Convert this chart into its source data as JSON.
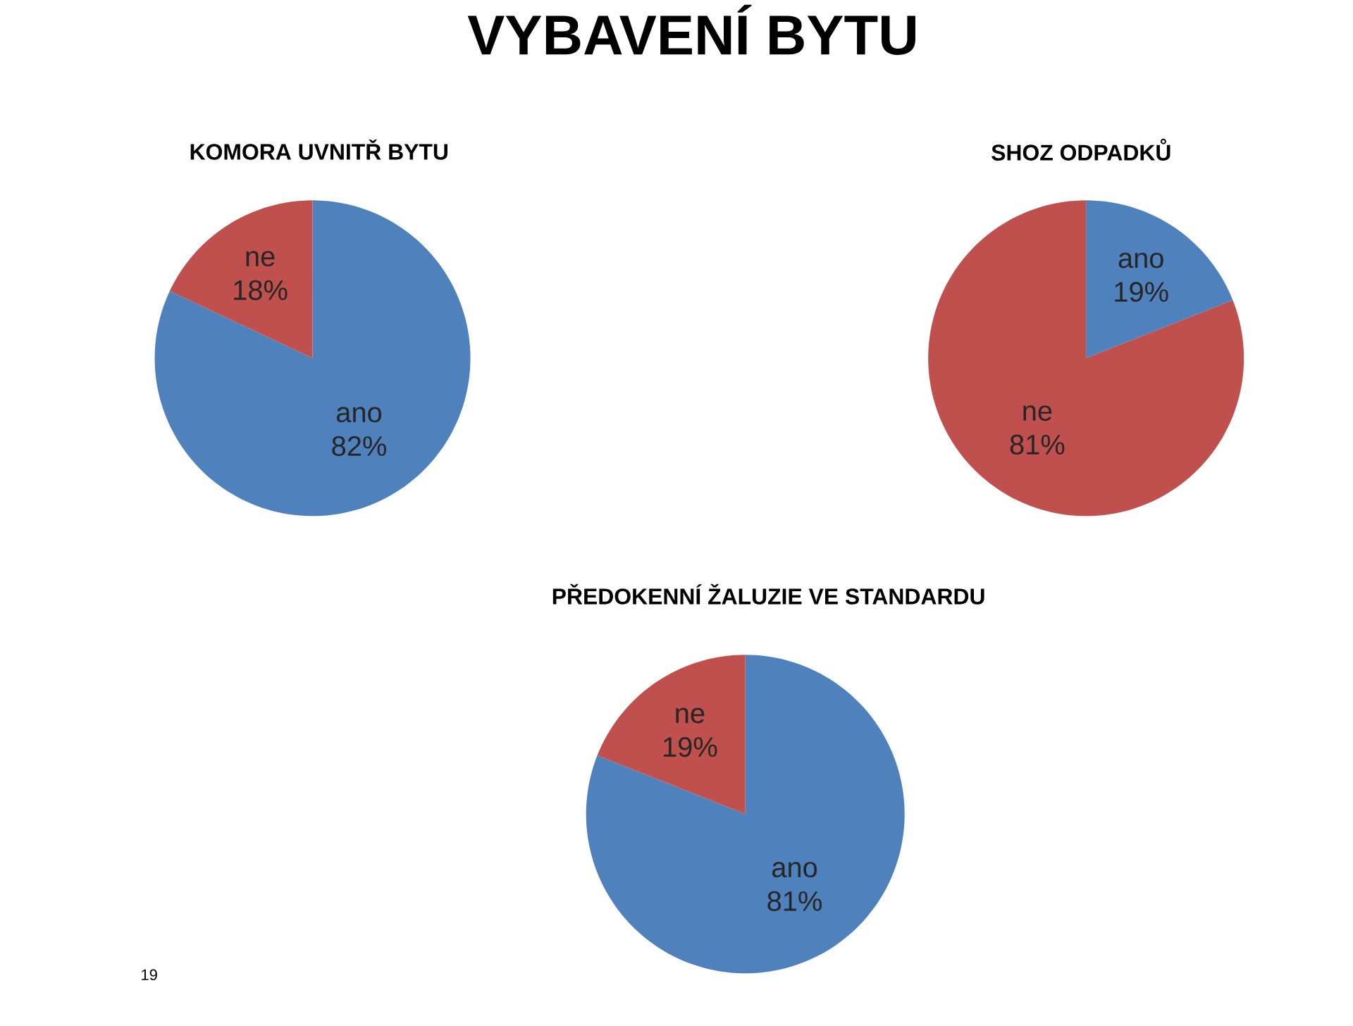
{
  "chart_data": [
    {
      "type": "pie",
      "title": "VYBAVENÍ BYTU",
      "subtitle": "KOMORA UVNITŘ BYTU",
      "categories": [
        "ano",
        "ne"
      ],
      "values": [
        82,
        18
      ],
      "colors": [
        "#4f81bd",
        "#c0504d"
      ],
      "value_labels": [
        "82%",
        "18%"
      ]
    },
    {
      "type": "pie",
      "title": "SHOZ ODPADKŮ",
      "categories": [
        "ano",
        "ne"
      ],
      "values": [
        19,
        81
      ],
      "colors": [
        "#4f81bd",
        "#c0504d"
      ],
      "value_labels": [
        "19%",
        "81%"
      ]
    },
    {
      "type": "pie",
      "title": "PŘEDOKENNÍ ŽALUZIE VE STANDARDU",
      "categories": [
        "ano",
        "ne"
      ],
      "values": [
        81,
        19
      ],
      "colors": [
        "#4f81bd",
        "#c0504d"
      ],
      "value_labels": [
        "81%",
        "19%"
      ],
      "annotations": [
        "19"
      ]
    }
  ]
}
